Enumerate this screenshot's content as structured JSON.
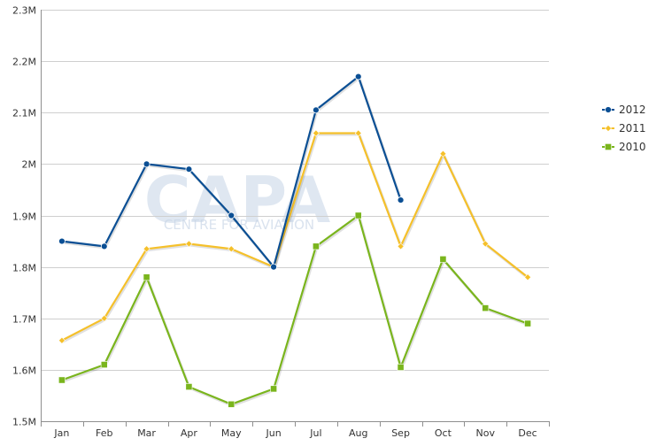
{
  "chart_data": {
    "type": "line",
    "title": "",
    "xlabel": "",
    "ylabel": "",
    "categories": [
      "Jan",
      "Feb",
      "Mar",
      "Apr",
      "May",
      "Jun",
      "Jul",
      "Aug",
      "Sep",
      "Oct",
      "Nov",
      "Dec"
    ],
    "ylim": [
      1500000,
      2300000
    ],
    "yticks": [
      {
        "value": 1500000,
        "label": "1.5M"
      },
      {
        "value": 1600000,
        "label": "1.6M"
      },
      {
        "value": 1700000,
        "label": "1.7M"
      },
      {
        "value": 1800000,
        "label": "1.8M"
      },
      {
        "value": 1900000,
        "label": "1.9M"
      },
      {
        "value": 2000000,
        "label": "2M"
      },
      {
        "value": 2100000,
        "label": "2.1M"
      },
      {
        "value": 2200000,
        "label": "2.2M"
      },
      {
        "value": 2300000,
        "label": "2.3M"
      }
    ],
    "grid": true,
    "legend_position": "right",
    "series": [
      {
        "name": "2012",
        "color": "#0b4f94",
        "marker": "circle",
        "values": [
          1850000,
          1840000,
          2000000,
          1990000,
          1900000,
          1800000,
          2105000,
          2170000,
          1930000,
          null,
          null,
          null
        ]
      },
      {
        "name": "2011",
        "color": "#f5c02a",
        "marker": "diamond",
        "values": [
          1657000,
          1700000,
          1835000,
          1845000,
          1835000,
          1800000,
          2060000,
          2060000,
          1840000,
          2020000,
          1845000,
          1780000
        ]
      },
      {
        "name": "2010",
        "color": "#7ab51d",
        "marker": "square",
        "values": [
          1580000,
          1610000,
          1780000,
          1567000,
          1533000,
          1563000,
          1840000,
          1900000,
          1605000,
          1815000,
          1720000,
          1690000
        ]
      }
    ]
  },
  "watermark": {
    "logo": "CAPA",
    "subtitle": "CENTRE FOR AVIATION"
  }
}
